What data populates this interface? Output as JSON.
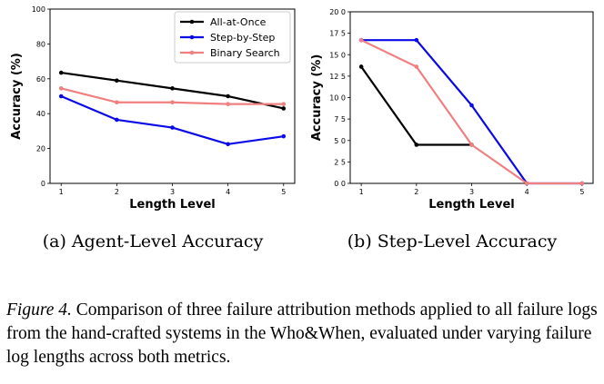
{
  "chart_data": [
    {
      "type": "line",
      "title": "",
      "xlabel": "Length Level",
      "ylabel": "Accuracy (%)",
      "x": [
        1,
        2,
        3,
        4,
        5
      ],
      "xlim": [
        0.8,
        5.2
      ],
      "ylim": [
        0,
        100
      ],
      "yticks": [
        0,
        20,
        40,
        60,
        80,
        100
      ],
      "ytick_labels": [
        "0",
        "20",
        "40",
        "60",
        "80",
        "100"
      ],
      "legend": "top-right",
      "series": [
        {
          "name": "All-at-Once",
          "color": "#000000",
          "values": [
            63.5,
            59.0,
            54.5,
            50.0,
            43.0
          ]
        },
        {
          "name": "Step-by-Step",
          "color": "#0a0ae6",
          "values": [
            50.0,
            36.5,
            32.0,
            22.5,
            27.0
          ]
        },
        {
          "name": "Binary Search",
          "color": "#f08080",
          "values": [
            54.5,
            46.5,
            46.5,
            45.5,
            45.5
          ]
        }
      ],
      "subcaption": "(a) Agent-Level Accuracy"
    },
    {
      "type": "line",
      "title": "",
      "xlabel": "Length Level",
      "ylabel": "Accuracy (%)",
      "x": [
        1,
        2,
        3,
        4,
        5
      ],
      "xlim": [
        0.8,
        5.2
      ],
      "ylim": [
        0,
        20
      ],
      "yticks": [
        0,
        2.5,
        5,
        7.5,
        10,
        12.5,
        15,
        17.5,
        20
      ],
      "ytick_labels": [
        "0 0",
        "2 5",
        "5 0",
        "7 5",
        "10 0",
        "12 5",
        "15 0",
        "17 5",
        "20 0"
      ],
      "series": [
        {
          "name": "All-at-Once",
          "color": "#000000",
          "values": [
            13.6,
            4.5,
            4.5,
            null,
            null
          ]
        },
        {
          "name": "Step-by-Step",
          "color": "#0a0ae6",
          "values": [
            16.7,
            16.7,
            9.1,
            0.0,
            0.0
          ]
        },
        {
          "name": "Binary Search",
          "color": "#f08080",
          "values": [
            16.7,
            13.6,
            4.5,
            0.0,
            0.0
          ]
        }
      ],
      "subcaption": "(b) Step-Level Accuracy"
    }
  ],
  "caption": {
    "figure_label": "Figure 4.",
    "text": " Comparison of three failure attribution methods applied to all failure logs from the hand-crafted systems in the Who&When, evaluated under varying failure log lengths across both metrics."
  }
}
